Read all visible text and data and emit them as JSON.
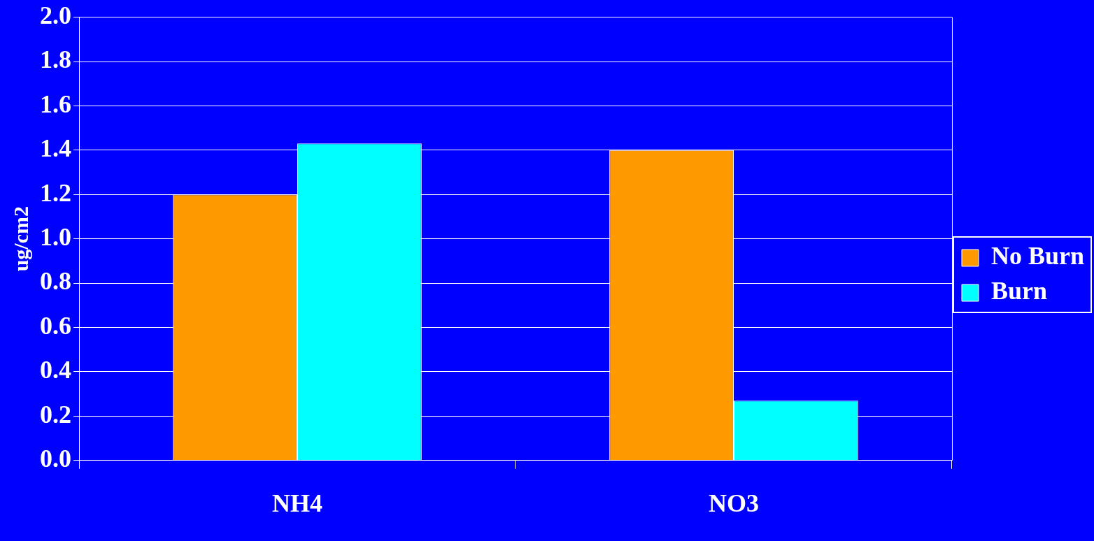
{
  "chart_data": {
    "type": "bar",
    "ylabel": "ug/cm2",
    "categories": [
      "NH4",
      "NO3"
    ],
    "series": [
      {
        "name": "No Burn",
        "color": "#ff9900",
        "values": [
          1.2,
          1.4
        ]
      },
      {
        "name": "Burn",
        "color": "#00ffff",
        "values": [
          1.43,
          0.27
        ]
      }
    ],
    "ylim": [
      0,
      2
    ],
    "yticks": [
      {
        "value": 0,
        "label": "0.0"
      },
      {
        "value": 0.2,
        "label": "0.2"
      },
      {
        "value": 0.4,
        "label": "0.4"
      },
      {
        "value": 0.6,
        "label": "0.6"
      },
      {
        "value": 0.8,
        "label": "0.8"
      },
      {
        "value": 1,
        "label": "1.0"
      },
      {
        "value": 1.2,
        "label": "1.2"
      },
      {
        "value": 1.4,
        "label": "1.4"
      },
      {
        "value": 1.6,
        "label": "1.6"
      },
      {
        "value": 1.8,
        "label": "1.8"
      },
      {
        "value": 2,
        "label": "2.0"
      }
    ],
    "grid": "y",
    "legend": "right"
  }
}
